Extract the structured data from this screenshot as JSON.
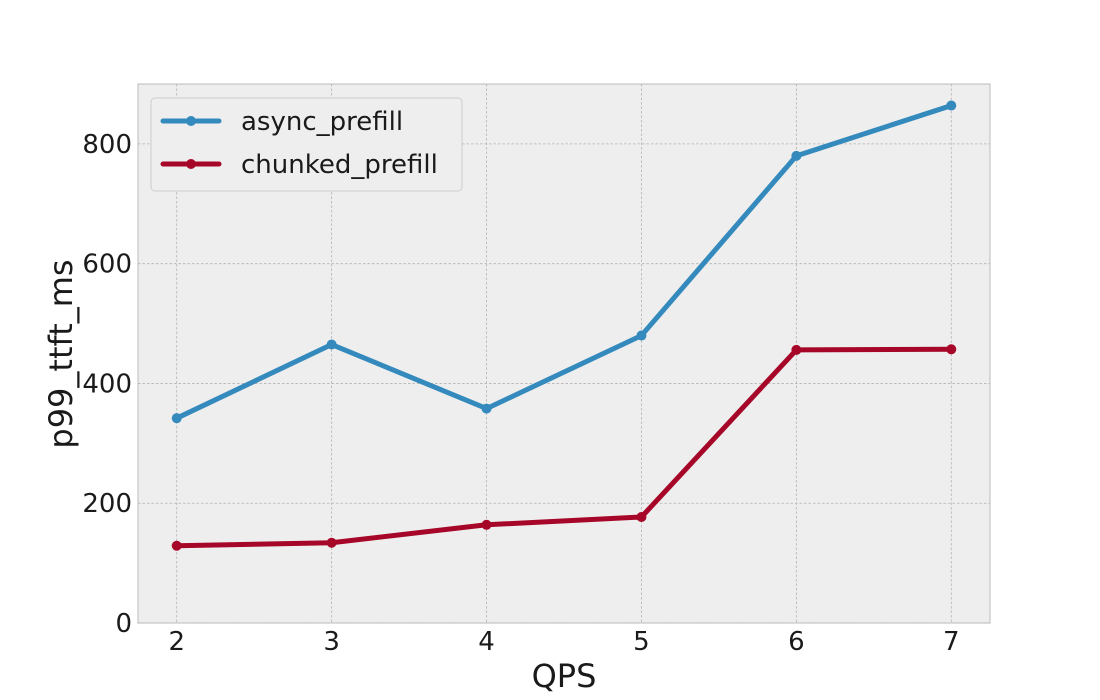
{
  "chart_data": {
    "type": "line",
    "title": "",
    "xlabel": "QPS",
    "ylabel": "p99_ttft_ms",
    "x": [
      2,
      3,
      4,
      5,
      6,
      7
    ],
    "xticks": [
      "2",
      "3",
      "4",
      "5",
      "6",
      "7"
    ],
    "xlim": [
      1.75,
      7.25
    ],
    "ylim": [
      0,
      900
    ],
    "yticks": [
      "0",
      "200",
      "400",
      "600",
      "800"
    ],
    "grid": true,
    "legend_position": "top-left",
    "series": [
      {
        "name": "async_prefill",
        "color": "#348abd",
        "marker": "circle",
        "values": [
          342,
          465,
          358,
          480,
          780,
          864
        ]
      },
      {
        "name": "chunked_prefill",
        "color": "#a60628",
        "marker": "circle",
        "values": [
          129,
          134,
          164,
          177,
          456,
          457
        ]
      }
    ]
  }
}
